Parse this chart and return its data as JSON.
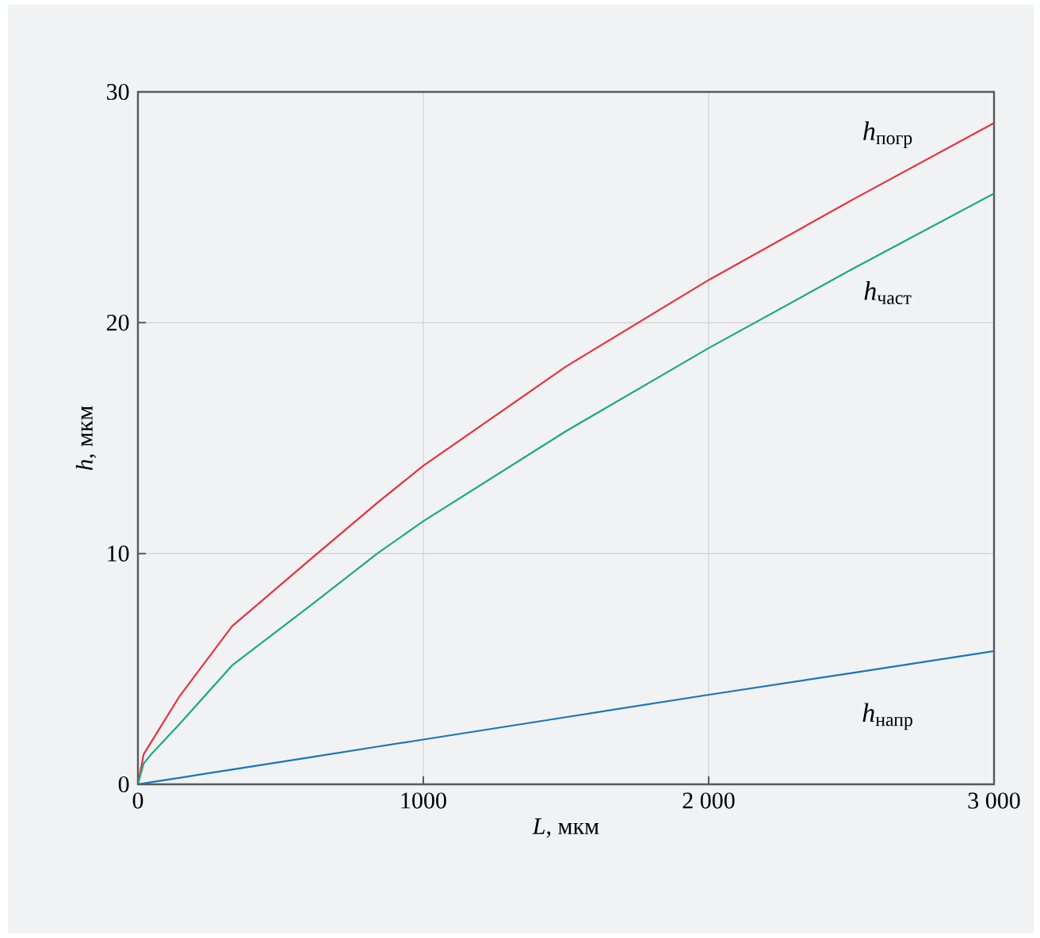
{
  "chart_data": {
    "type": "line",
    "xlabel": "*L*, мкм",
    "ylabel": "*h*, мкм",
    "x": [
      0,
      20,
      50,
      145,
      330,
      600,
      839,
      1000,
      1500,
      2000,
      2500,
      3000
    ],
    "series": [
      {
        "name": "*h*$_{погр}$",
        "color": "#e8303f",
        "values": [
          0,
          1.3,
          1.9,
          3.8,
          6.85,
          9.7,
          12.2,
          13.8,
          18.1,
          21.85,
          25.3,
          28.65
        ]
      },
      {
        "name": "*h*$_{част}$",
        "color": "#1aaa7e",
        "values": [
          0,
          0.9,
          1.35,
          2.6,
          5.15,
          7.7,
          10,
          11.4,
          15.3,
          18.9,
          22.3,
          25.6
        ]
      },
      {
        "name": "*h*$_{напр}$",
        "color": "#1a75bb",
        "values": [
          0,
          0.04,
          0.1,
          0.28,
          0.64,
          1.16,
          1.63,
          1.94,
          2.91,
          3.88,
          4.82,
          5.77
        ]
      }
    ],
    "xlim": [
      0,
      3000
    ],
    "ylim": [
      0,
      30
    ],
    "xticks": [
      0,
      1000,
      {
        "value": 2000,
        "label": "2 000"
      },
      {
        "value": 3000,
        "label": "3 000"
      }
    ],
    "yticks": [
      0,
      10,
      20,
      30
    ],
    "grid": true,
    "legend": false,
    "marker": "none",
    "line_style": "solid"
  }
}
